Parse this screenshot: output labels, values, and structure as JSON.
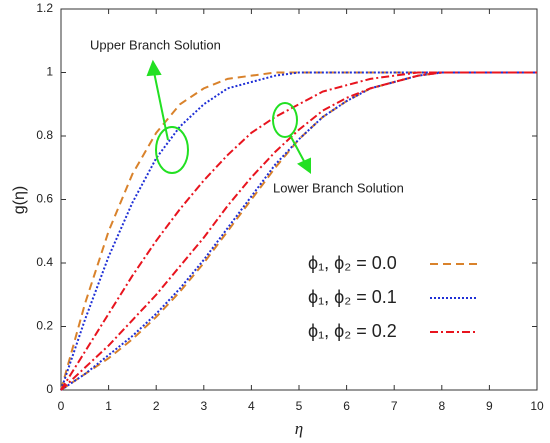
{
  "chart_data": {
    "type": "line",
    "x_label": "η",
    "y_label": "g(η)",
    "annotations": [
      "Upper Branch Solution",
      "Lower Branch Solution"
    ],
    "x": [
      0,
      0.5,
      1,
      1.5,
      2,
      2.5,
      3,
      3.5,
      4,
      4.5,
      5,
      5.5,
      6,
      6.5,
      7,
      7.5,
      8,
      8.5,
      9,
      9.5,
      10
    ],
    "series": [
      {
        "name": "ϕ₁, ϕ₂ = 0.0",
        "color": "#d9822b",
        "dash": "8,5",
        "upper": [
          0,
          0.27,
          0.5,
          0.68,
          0.81,
          0.9,
          0.95,
          0.98,
          0.99,
          1,
          1,
          1,
          1,
          1,
          1,
          1,
          1,
          1,
          1,
          1,
          1
        ],
        "lower": [
          0,
          0.05,
          0.1,
          0.16,
          0.23,
          0.31,
          0.4,
          0.5,
          0.6,
          0.7,
          0.79,
          0.86,
          0.91,
          0.95,
          0.97,
          0.99,
          1,
          1,
          1,
          1,
          1
        ]
      },
      {
        "name": "ϕ₁, ϕ₂ = 0.1",
        "color": "#1f2fd6",
        "dash": "2,2",
        "upper": [
          0,
          0.22,
          0.42,
          0.59,
          0.73,
          0.83,
          0.9,
          0.95,
          0.97,
          0.99,
          1,
          1,
          1,
          1,
          1,
          1,
          1,
          1,
          1,
          1,
          1
        ],
        "lower": [
          0,
          0.05,
          0.11,
          0.17,
          0.24,
          0.32,
          0.41,
          0.51,
          0.61,
          0.71,
          0.79,
          0.86,
          0.91,
          0.95,
          0.97,
          0.99,
          1,
          1,
          1,
          1,
          1
        ]
      },
      {
        "name": "ϕ₁, ϕ₂ = 0.2",
        "color": "#e8141e",
        "dash": "8,3,2,3",
        "upper": [
          0,
          0.12,
          0.24,
          0.36,
          0.47,
          0.57,
          0.66,
          0.74,
          0.81,
          0.86,
          0.9,
          0.94,
          0.96,
          0.98,
          0.99,
          1,
          1,
          1,
          1,
          1,
          1
        ],
        "lower": [
          0,
          0.07,
          0.14,
          0.22,
          0.3,
          0.39,
          0.48,
          0.58,
          0.67,
          0.75,
          0.82,
          0.88,
          0.92,
          0.95,
          0.97,
          0.99,
          1,
          1,
          1,
          1,
          1
        ]
      }
    ],
    "xlim": [
      0,
      10
    ],
    "ylim": [
      0,
      1.2
    ],
    "xticks": [
      0,
      1,
      2,
      3,
      4,
      5,
      6,
      7,
      8,
      9,
      10
    ],
    "yticks": [
      0,
      0.2,
      0.4,
      0.6,
      0.8,
      1,
      1.2
    ],
    "legend": "lower-right"
  }
}
